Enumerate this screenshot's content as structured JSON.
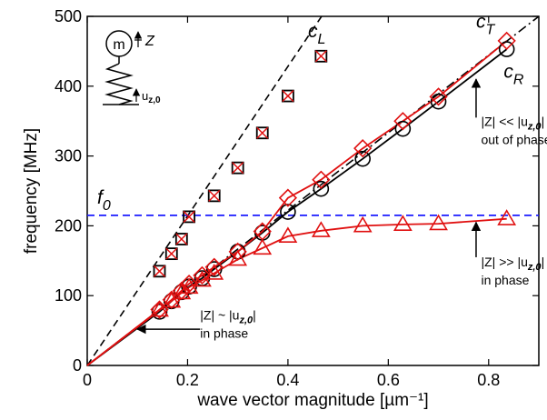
{
  "chart_data": {
    "type": "scatter",
    "xlabel": "wave vector magnitude [µm⁻¹]",
    "ylabel": "frequency [MHz]",
    "xlim": [
      0,
      0.9
    ],
    "ylim": [
      0,
      500
    ],
    "xticks": [
      "0",
      "0.2",
      "0.4",
      "0.6",
      "0.8"
    ],
    "yticks": [
      "0",
      "100",
      "200",
      "300",
      "400",
      "500"
    ],
    "grid": false,
    "reference_lines": [
      {
        "label": "c_L",
        "points": [
          [
            0,
            0
          ],
          [
            0.467,
            500
          ]
        ],
        "style": "dashed",
        "color": "#000000"
      },
      {
        "label": "c_T",
        "points": [
          [
            0,
            0
          ],
          [
            0.9,
            500
          ]
        ],
        "style": "dash-dot",
        "color": "#000000"
      },
      {
        "label": "f_0",
        "y": 215,
        "style": "dashed",
        "color": "#1a1aff"
      }
    ],
    "series": [
      {
        "marker": "square-x",
        "color": "#000000",
        "x": [
          0.144,
          0.168,
          0.188,
          0.203,
          0.253,
          0.3,
          0.349,
          0.4,
          0.466
        ],
        "y": [
          135,
          160,
          181,
          213,
          243,
          283,
          333,
          386,
          443
        ]
      },
      {
        "marker": "circle",
        "color": "#000000",
        "line": "solid",
        "x": [
          0.144,
          0.168,
          0.188,
          0.203,
          0.229,
          0.253,
          0.3,
          0.349,
          0.4,
          0.466,
          0.549,
          0.629,
          0.7,
          0.836
        ],
        "y": [
          77,
          92,
          105,
          113,
          125,
          138,
          163,
          190,
          220,
          253,
          296,
          339,
          378,
          453
        ]
      },
      {
        "marker": "diamond",
        "color": "#e01010",
        "line": "solid",
        "x": [
          0.144,
          0.168,
          0.188,
          0.203,
          0.229,
          0.253,
          0.3,
          0.349,
          0.4,
          0.466,
          0.549,
          0.629,
          0.7,
          0.836
        ],
        "y": [
          80,
          94,
          107,
          117,
          129,
          141,
          163,
          192,
          240,
          266,
          311,
          350,
          385,
          465
        ]
      },
      {
        "marker": "triangle",
        "color": "#e01010",
        "line": "solid",
        "x": [
          0.144,
          0.168,
          0.188,
          0.203,
          0.229,
          0.253,
          0.3,
          0.349,
          0.4,
          0.466,
          0.549,
          0.629,
          0.7,
          0.836
        ],
        "y": [
          79,
          92,
          104,
          112,
          122,
          132,
          152,
          168,
          185,
          193,
          200,
          202,
          203,
          210
        ]
      }
    ],
    "curve_labels": [
      {
        "text": "c",
        "sub": "L",
        "x": 0.44,
        "y": 470
      },
      {
        "text": "c",
        "sub": "T",
        "x": 0.775,
        "y": 484
      },
      {
        "text": "c",
        "sub": "R",
        "x": 0.83,
        "y": 412
      },
      {
        "text": "f",
        "sub": "0",
        "x": 0.02,
        "y": 232
      }
    ],
    "annotations": [
      {
        "lines": [
          "|Z| << |u",
          "z,0",
          "|"
        ],
        "line2": "out of phase",
        "x": 0.785,
        "y": 343,
        "arrow_from": [
          0.775,
          355
        ],
        "arrow_to": [
          0.775,
          410
        ]
      },
      {
        "lines": [
          "|Z| >> |u",
          "z,0",
          "|"
        ],
        "line2": "in phase",
        "x": 0.785,
        "y": 142,
        "arrow_from": [
          0.775,
          155
        ],
        "arrow_to": [
          0.775,
          205
        ]
      },
      {
        "lines": [
          "|Z| ~ |u",
          "z,0",
          "|"
        ],
        "line2": "in phase",
        "x": 0.225,
        "y": 66,
        "arrow_from": [
          0.225,
          52
        ],
        "arrow_to": [
          0.1,
          52
        ]
      }
    ],
    "inset": {
      "mass_label": "m",
      "z_label": "Z",
      "u_label": "u",
      "u_sub": "z,0"
    }
  }
}
